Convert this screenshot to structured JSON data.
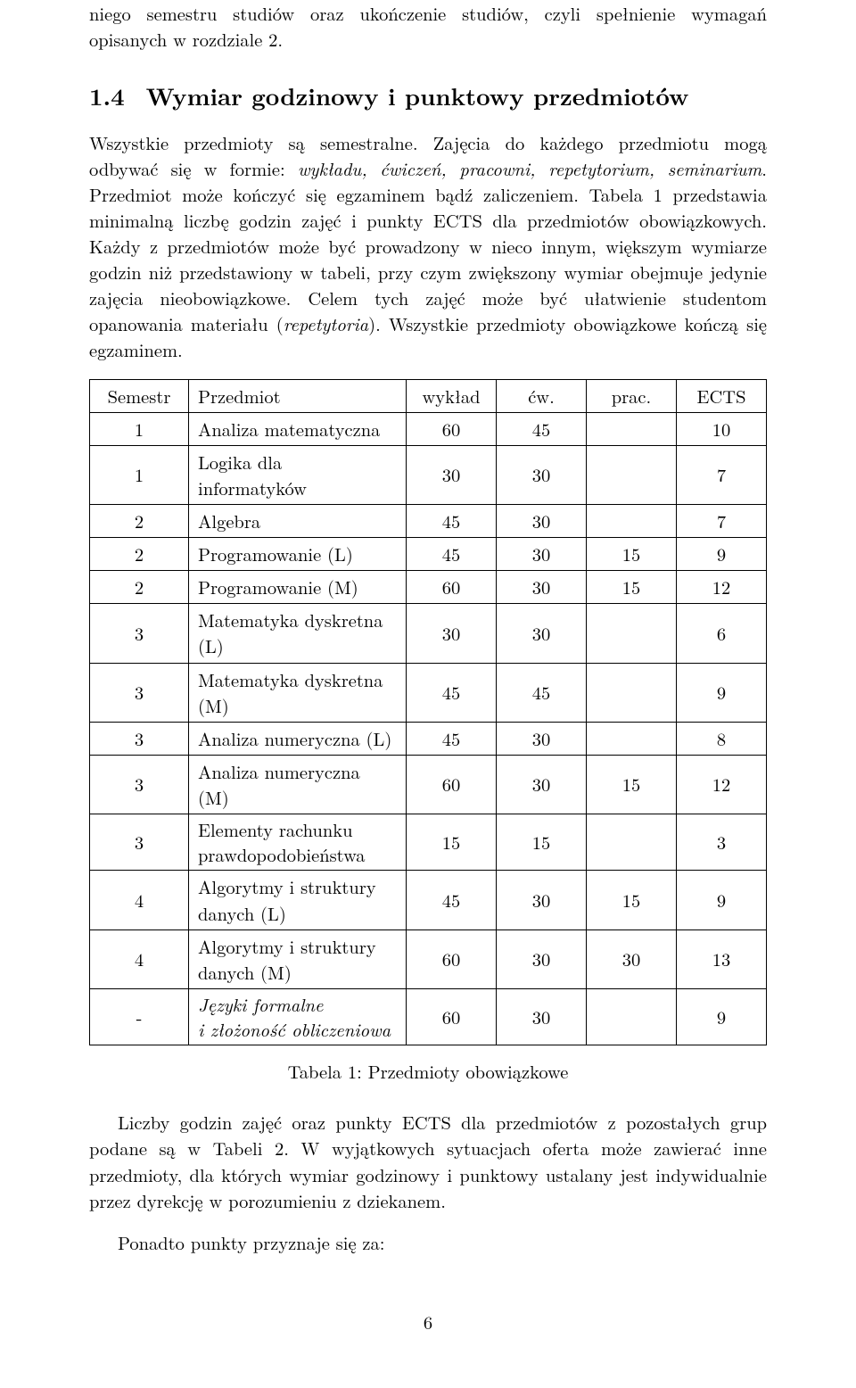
{
  "para_top": "niego semestru studiów oraz ukończenie studiów, czyli spełnienie wymagań opisanych w rozdziale 2.",
  "section": {
    "num": "1.4",
    "title": "Wymiar godzinowy i punktowy przedmiotów"
  },
  "para1_before_italic": "Wszystkie przedmioty są semestralne. Zajęcia do każdego przedmiotu mogą odbywać się w formie: ",
  "para1_italic": "wykładu, ćwiczeń, pracowni, repetytorium, seminarium",
  "para1_after_italic_before_ital2": ". Przedmiot może kończyć się egzaminem bądź zaliczeniem. Tabela 1 przedstawia minimalną liczbę godzin zajęć i punkty ECTS dla przedmiotów obowiązkowych. Każdy z przedmiotów może być prowadzony w nieco innym, większym wymiarze godzin niż przedstawiony w tabeli, przy czym zwiększony wymiar obejmuje jedynie zajęcia nieobowiązkowe. Celem tych zajęć może być ułatwienie studentom opanowania materiału (",
  "para1_italic2": "repetytoria",
  "para1_after_ital2": "). Wszystkie przedmioty obowiązkowe kończą się egzaminem.",
  "table": {
    "headers": [
      "Semestr",
      "Przedmiot",
      "wykład",
      "ćw.",
      "prac.",
      "ECTS"
    ],
    "rows": [
      {
        "sem": "1",
        "subj": "Analiza matematyczna",
        "wyk": "60",
        "cw": "45",
        "prac": "",
        "ects": "10"
      },
      {
        "sem": "1",
        "subj": "Logika dla informatyków",
        "wyk": "30",
        "cw": "30",
        "prac": "",
        "ects": "7"
      },
      {
        "sem": "2",
        "subj": "Algebra",
        "wyk": "45",
        "cw": "30",
        "prac": "",
        "ects": "7"
      },
      {
        "sem": "2",
        "subj": "Programowanie (L)",
        "wyk": "45",
        "cw": "30",
        "prac": "15",
        "ects": "9"
      },
      {
        "sem": "2",
        "subj": "Programowanie (M)",
        "wyk": "60",
        "cw": "30",
        "prac": "15",
        "ects": "12"
      },
      {
        "sem": "3",
        "subj": "Matematyka dyskretna (L)",
        "wyk": "30",
        "cw": "30",
        "prac": "",
        "ects": "6"
      },
      {
        "sem": "3",
        "subj": "Matematyka dyskretna (M)",
        "wyk": "45",
        "cw": "45",
        "prac": "",
        "ects": "9"
      },
      {
        "sem": "3",
        "subj": "Analiza numeryczna (L)",
        "wyk": "45",
        "cw": "30",
        "prac": "",
        "ects": "8"
      },
      {
        "sem": "3",
        "subj": "Analiza numeryczna (M)",
        "wyk": "60",
        "cw": "30",
        "prac": "15",
        "ects": "12"
      },
      {
        "sem": "3",
        "subj_l1": "Elementy rachunku",
        "subj_l2": "prawdopodobieństwa",
        "wyk": "15",
        "cw": "15",
        "prac": "",
        "ects": "3",
        "multiline": true
      },
      {
        "sem": "4",
        "subj": "Algorytmy i struktury danych (L)",
        "wyk": "45",
        "cw": "30",
        "prac": "15",
        "ects": "9"
      },
      {
        "sem": "4",
        "subj": "Algorytmy i struktury danych (M)",
        "wyk": "60",
        "cw": "30",
        "prac": "30",
        "ects": "13"
      },
      {
        "sem": "-",
        "subj_l1": "Języki formalne",
        "subj_l2": "i złożoność obliczeniowa",
        "wyk": "60",
        "cw": "30",
        "prac": "",
        "ects": "9",
        "multiline": true,
        "italic": true
      }
    ]
  },
  "caption": "Tabela 1: Przedmioty obowiązkowe",
  "para2": "Liczby godzin zajęć oraz punkty ECTS dla przedmiotów z pozostałych grup podane są w Tabeli 2. W wyjątkowych sytuacjach oferta może zawierać inne przedmioty, dla których wymiar godzinowy i punktowy ustalany jest indywidualnie przez dyrekcję w porozumieniu z dziekanem.",
  "para3": "Ponadto punkty przyznaje się za:",
  "pageno": "6"
}
